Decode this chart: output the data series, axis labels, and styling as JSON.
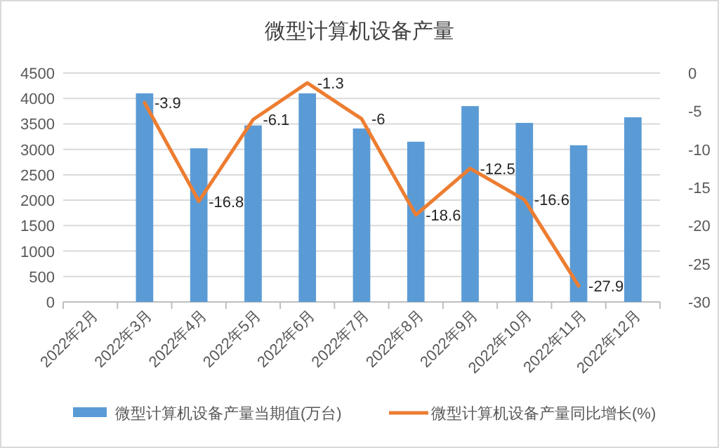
{
  "chart_data": {
    "type": "bar",
    "title": "微型计算机设备产量",
    "categories": [
      "2022年2月",
      "2022年3月",
      "2022年4月",
      "2022年5月",
      "2022年6月",
      "2022年7月",
      "2022年8月",
      "2022年9月",
      "2022年10月",
      "2022年11月",
      "2022年12月"
    ],
    "series": [
      {
        "name": "微型计算机设备产量当期值(万台)",
        "color": "#5b9bd5",
        "values": [
          null,
          4100,
          3020,
          3470,
          4100,
          3410,
          3150,
          3850,
          3520,
          3080,
          3630
        ]
      },
      {
        "name": "微型计算机设备产量同比增长(%)",
        "type": "line",
        "axis": "y2",
        "color": "#ed7d31",
        "values": [
          null,
          -3.9,
          -16.8,
          -6.1,
          -1.3,
          -6,
          -18.6,
          -12.5,
          -16.6,
          -27.9,
          null
        ],
        "value_labels": [
          null,
          "-3.9",
          "-16.8",
          "-6.1",
          "-1.3",
          "-6",
          "-18.6",
          "-12.5",
          "-16.6",
          "-27.9",
          null
        ]
      }
    ],
    "ylim": [
      0,
      4500
    ],
    "yticks": [
      0,
      500,
      1000,
      1500,
      2000,
      2500,
      3000,
      3500,
      4000,
      4500
    ],
    "y2lim": [
      -30,
      0
    ],
    "y2ticks": [
      -30,
      -25,
      -20,
      -15,
      -10,
      -5,
      0
    ],
    "grid": "y",
    "legend": "bottom"
  }
}
